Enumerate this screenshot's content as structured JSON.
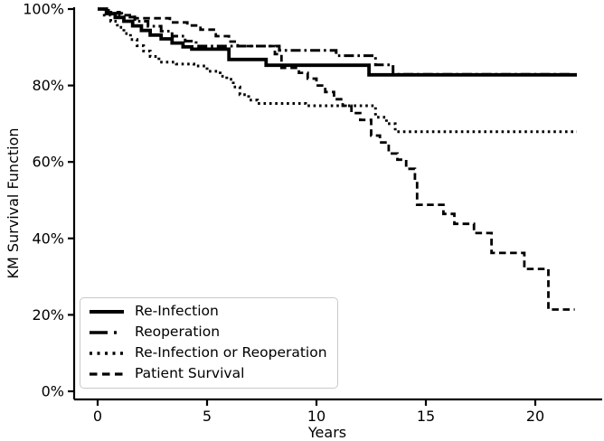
{
  "figure": {
    "background": "#ffffff",
    "line_color": "#000000",
    "text_color": "#000000",
    "legend_border_color": "#c9c9c9"
  },
  "chart_data": {
    "type": "line",
    "subtype": "kaplan-meier-step-function",
    "title": "",
    "xlabel": "Years",
    "ylabel": "KM Survival Function",
    "xlim": [
      -1,
      23
    ],
    "ylim": [
      0,
      100
    ],
    "x_ticks": [
      0,
      5,
      10,
      15,
      20
    ],
    "x_tick_labels": [
      "0",
      "5",
      "10",
      "15",
      "20"
    ],
    "y_ticks": [
      0,
      20,
      40,
      60,
      80,
      100
    ],
    "y_tick_labels": [
      "0%",
      "20%",
      "40%",
      "60%",
      "80%",
      "100%"
    ],
    "grid": false,
    "legend_position": "lower-left",
    "units": {
      "x": "years",
      "y": "percent surviving"
    },
    "series": [
      {
        "name": "Re-Infection",
        "line_style": "solid",
        "points": [
          [
            0,
            100
          ],
          [
            0.4,
            98.8
          ],
          [
            0.8,
            97.8
          ],
          [
            1.2,
            96.8
          ],
          [
            1.6,
            95.6
          ],
          [
            2.0,
            94.4
          ],
          [
            2.4,
            93.2
          ],
          [
            2.9,
            92.2
          ],
          [
            3.4,
            91.1
          ],
          [
            3.9,
            90.1
          ],
          [
            4.3,
            89.5
          ],
          [
            6.0,
            86.8
          ],
          [
            7.7,
            85.3
          ],
          [
            12.4,
            82.8
          ],
          [
            21.9,
            82.8
          ]
        ]
      },
      {
        "name": "Reoperation",
        "line_style": "dashdot",
        "points": [
          [
            0,
            100
          ],
          [
            0.5,
            98.9
          ],
          [
            1.1,
            97.9
          ],
          [
            1.7,
            96.8
          ],
          [
            2.3,
            95.5
          ],
          [
            2.9,
            94.2
          ],
          [
            3.4,
            92.9
          ],
          [
            4.0,
            91.6
          ],
          [
            4.5,
            90.3
          ],
          [
            8.3,
            89.2
          ],
          [
            10.9,
            87.8
          ],
          [
            12.7,
            85.4
          ],
          [
            13.5,
            82.9
          ],
          [
            21.6,
            82.9
          ]
        ]
      },
      {
        "name": "Re-Infection or Reoperation",
        "line_style": "dotted",
        "points": [
          [
            0,
            100
          ],
          [
            0.3,
            98.4
          ],
          [
            0.6,
            96.8
          ],
          [
            0.9,
            95.2
          ],
          [
            1.2,
            93.6
          ],
          [
            1.5,
            92.0
          ],
          [
            1.8,
            90.4
          ],
          [
            2.1,
            89.0
          ],
          [
            2.4,
            87.6
          ],
          [
            2.8,
            86.1
          ],
          [
            3.6,
            85.6
          ],
          [
            4.4,
            85.1
          ],
          [
            5.0,
            83.7
          ],
          [
            5.6,
            82.4
          ],
          [
            5.9,
            81.6
          ],
          [
            6.2,
            79.6
          ],
          [
            6.5,
            77.6
          ],
          [
            6.9,
            76.2
          ],
          [
            7.3,
            75.3
          ],
          [
            9.5,
            74.7
          ],
          [
            12.7,
            71.7
          ],
          [
            13.2,
            70.0
          ],
          [
            13.6,
            67.9
          ],
          [
            21.9,
            67.9
          ]
        ]
      },
      {
        "name": "Patient Survival",
        "line_style": "dashed",
        "points": [
          [
            0,
            100
          ],
          [
            0.5,
            99.2
          ],
          [
            1.0,
            98.4
          ],
          [
            1.7,
            97.6
          ],
          [
            3.3,
            96.5
          ],
          [
            4.1,
            95.7
          ],
          [
            4.7,
            94.6
          ],
          [
            5.4,
            92.9
          ],
          [
            6.0,
            91.5
          ],
          [
            6.4,
            90.3
          ],
          [
            8.1,
            88.2
          ],
          [
            8.4,
            84.6
          ],
          [
            9.2,
            83.3
          ],
          [
            9.6,
            81.8
          ],
          [
            10.0,
            80.0
          ],
          [
            10.4,
            78.3
          ],
          [
            10.8,
            76.4
          ],
          [
            11.2,
            74.7
          ],
          [
            11.6,
            72.8
          ],
          [
            12.0,
            71.0
          ],
          [
            12.5,
            66.9
          ],
          [
            12.9,
            65.1
          ],
          [
            13.3,
            62.2
          ],
          [
            13.7,
            60.6
          ],
          [
            14.1,
            58.2
          ],
          [
            14.5,
            55.1
          ],
          [
            14.6,
            48.8
          ],
          [
            15.8,
            46.4
          ],
          [
            16.3,
            43.8
          ],
          [
            17.2,
            41.4
          ],
          [
            18.0,
            36.2
          ],
          [
            19.5,
            32.0
          ],
          [
            20.6,
            21.4
          ],
          [
            21.8,
            21.4
          ]
        ]
      }
    ]
  }
}
